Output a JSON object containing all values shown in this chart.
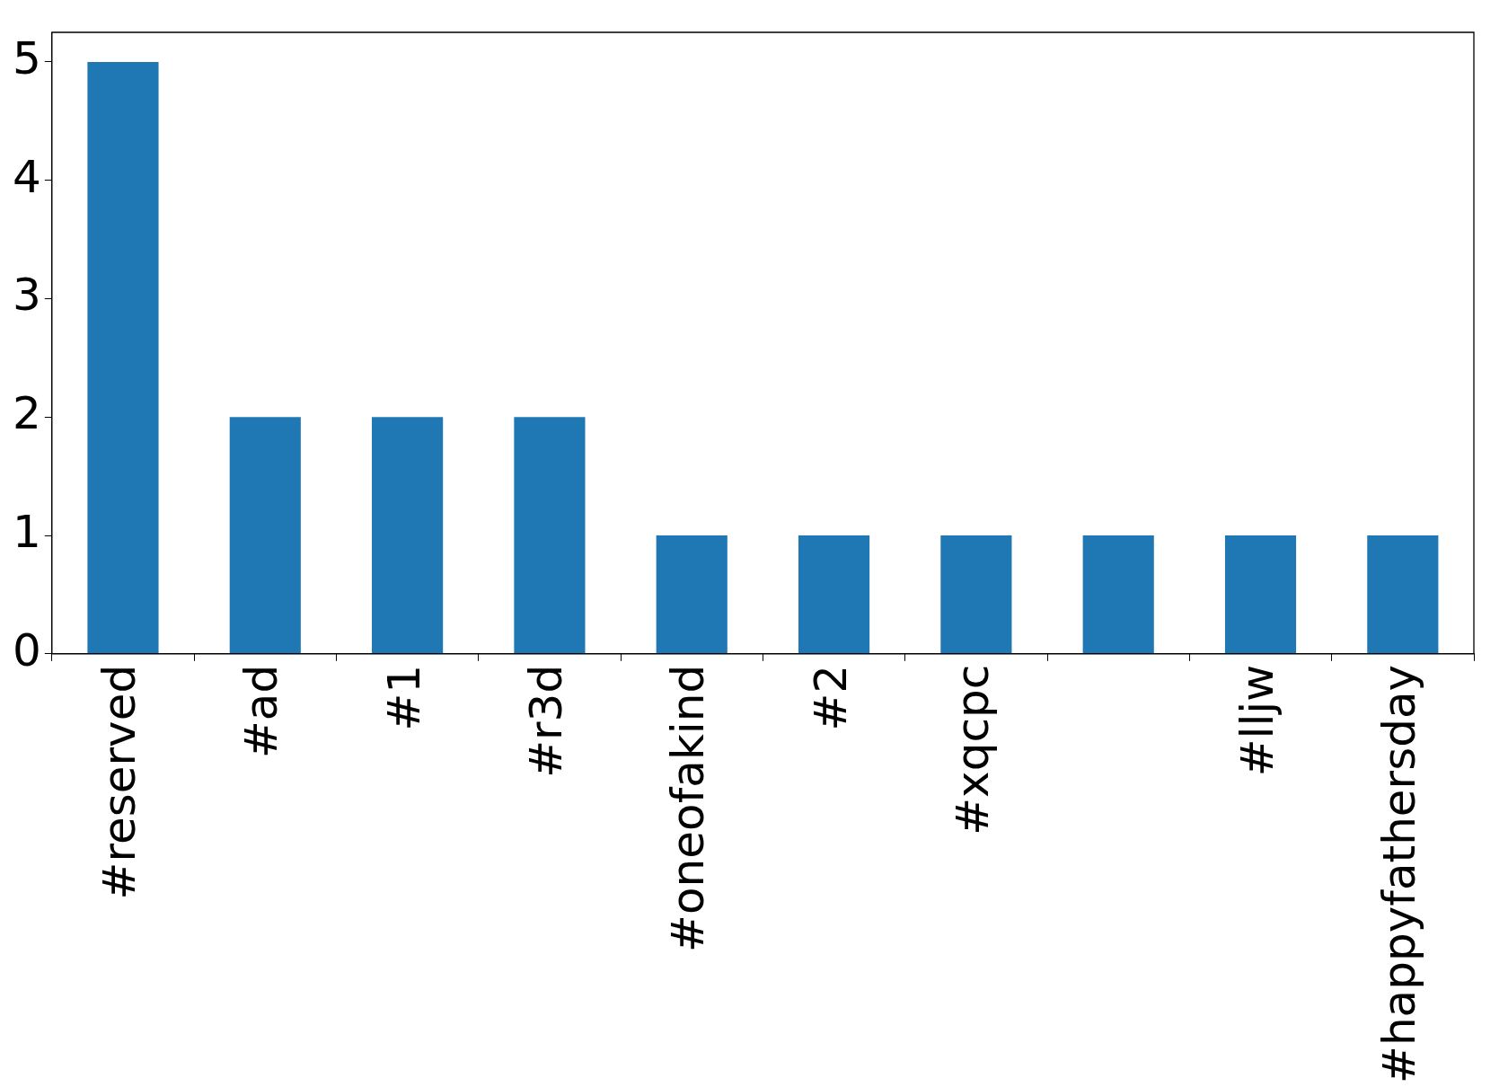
{
  "chart_data": {
    "type": "bar",
    "categories": [
      "#reserved",
      "#ad",
      "#1",
      "#r3d",
      "#oneofakind",
      "#2",
      "#xqcpc",
      null,
      "#lljw",
      "#happyfathersday"
    ],
    "values": [
      5,
      2,
      2,
      2,
      1,
      1,
      1,
      1,
      1,
      1
    ],
    "color": "#1f77b4",
    "ylim": [
      0,
      5.25
    ],
    "yticks": [
      0,
      1,
      2,
      3,
      4,
      5
    ],
    "grid": false,
    "legend": false
  }
}
